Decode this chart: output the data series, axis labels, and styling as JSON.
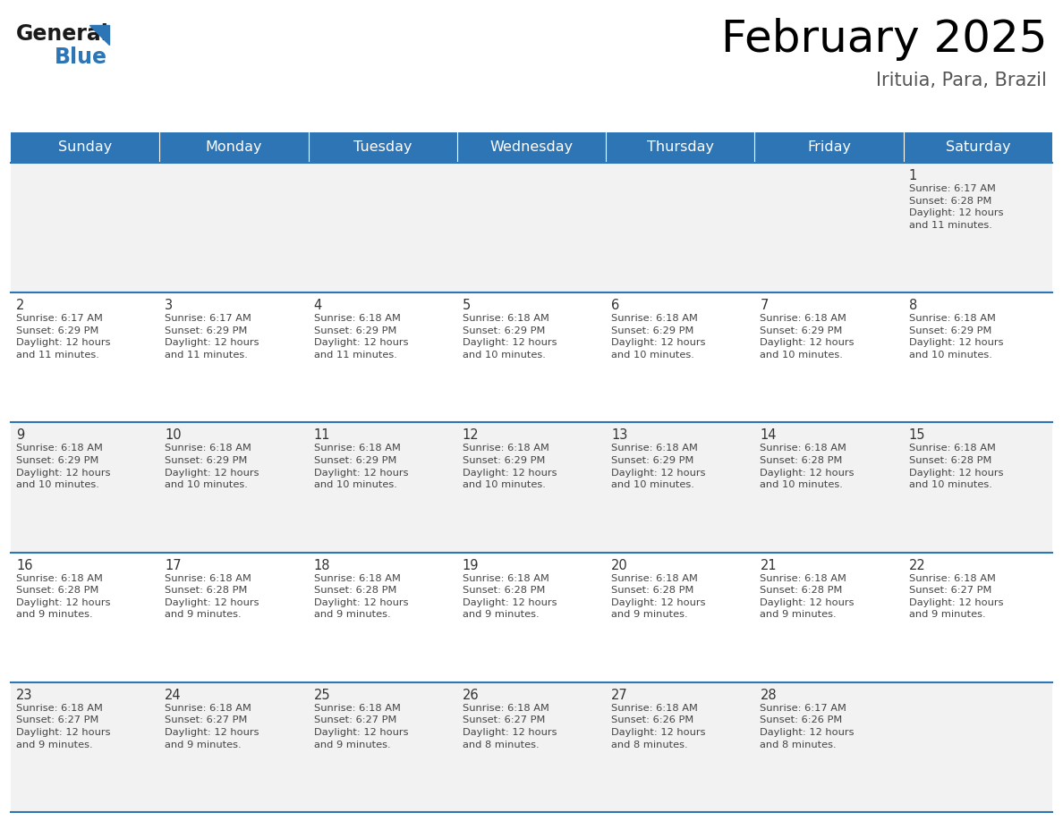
{
  "title": "February 2025",
  "subtitle": "Irituia, Para, Brazil",
  "header_bg": "#2E75B6",
  "header_text_color": "#FFFFFF",
  "cell_bg_odd": "#F2F2F2",
  "cell_bg_even": "#FFFFFF",
  "border_color": "#2E75B6",
  "day_headers": [
    "Sunday",
    "Monday",
    "Tuesday",
    "Wednesday",
    "Thursday",
    "Friday",
    "Saturday"
  ],
  "text_color": "#444444",
  "day_num_color": "#333333",
  "logo_general_color": "#1A1A1A",
  "logo_blue_color": "#2E75B6",
  "calendar": [
    [
      {
        "day": "",
        "info": ""
      },
      {
        "day": "",
        "info": ""
      },
      {
        "day": "",
        "info": ""
      },
      {
        "day": "",
        "info": ""
      },
      {
        "day": "",
        "info": ""
      },
      {
        "day": "",
        "info": ""
      },
      {
        "day": "1",
        "info": "Sunrise: 6:17 AM\nSunset: 6:28 PM\nDaylight: 12 hours\nand 11 minutes."
      }
    ],
    [
      {
        "day": "2",
        "info": "Sunrise: 6:17 AM\nSunset: 6:29 PM\nDaylight: 12 hours\nand 11 minutes."
      },
      {
        "day": "3",
        "info": "Sunrise: 6:17 AM\nSunset: 6:29 PM\nDaylight: 12 hours\nand 11 minutes."
      },
      {
        "day": "4",
        "info": "Sunrise: 6:18 AM\nSunset: 6:29 PM\nDaylight: 12 hours\nand 11 minutes."
      },
      {
        "day": "5",
        "info": "Sunrise: 6:18 AM\nSunset: 6:29 PM\nDaylight: 12 hours\nand 10 minutes."
      },
      {
        "day": "6",
        "info": "Sunrise: 6:18 AM\nSunset: 6:29 PM\nDaylight: 12 hours\nand 10 minutes."
      },
      {
        "day": "7",
        "info": "Sunrise: 6:18 AM\nSunset: 6:29 PM\nDaylight: 12 hours\nand 10 minutes."
      },
      {
        "day": "8",
        "info": "Sunrise: 6:18 AM\nSunset: 6:29 PM\nDaylight: 12 hours\nand 10 minutes."
      }
    ],
    [
      {
        "day": "9",
        "info": "Sunrise: 6:18 AM\nSunset: 6:29 PM\nDaylight: 12 hours\nand 10 minutes."
      },
      {
        "day": "10",
        "info": "Sunrise: 6:18 AM\nSunset: 6:29 PM\nDaylight: 12 hours\nand 10 minutes."
      },
      {
        "day": "11",
        "info": "Sunrise: 6:18 AM\nSunset: 6:29 PM\nDaylight: 12 hours\nand 10 minutes."
      },
      {
        "day": "12",
        "info": "Sunrise: 6:18 AM\nSunset: 6:29 PM\nDaylight: 12 hours\nand 10 minutes."
      },
      {
        "day": "13",
        "info": "Sunrise: 6:18 AM\nSunset: 6:29 PM\nDaylight: 12 hours\nand 10 minutes."
      },
      {
        "day": "14",
        "info": "Sunrise: 6:18 AM\nSunset: 6:28 PM\nDaylight: 12 hours\nand 10 minutes."
      },
      {
        "day": "15",
        "info": "Sunrise: 6:18 AM\nSunset: 6:28 PM\nDaylight: 12 hours\nand 10 minutes."
      }
    ],
    [
      {
        "day": "16",
        "info": "Sunrise: 6:18 AM\nSunset: 6:28 PM\nDaylight: 12 hours\nand 9 minutes."
      },
      {
        "day": "17",
        "info": "Sunrise: 6:18 AM\nSunset: 6:28 PM\nDaylight: 12 hours\nand 9 minutes."
      },
      {
        "day": "18",
        "info": "Sunrise: 6:18 AM\nSunset: 6:28 PM\nDaylight: 12 hours\nand 9 minutes."
      },
      {
        "day": "19",
        "info": "Sunrise: 6:18 AM\nSunset: 6:28 PM\nDaylight: 12 hours\nand 9 minutes."
      },
      {
        "day": "20",
        "info": "Sunrise: 6:18 AM\nSunset: 6:28 PM\nDaylight: 12 hours\nand 9 minutes."
      },
      {
        "day": "21",
        "info": "Sunrise: 6:18 AM\nSunset: 6:28 PM\nDaylight: 12 hours\nand 9 minutes."
      },
      {
        "day": "22",
        "info": "Sunrise: 6:18 AM\nSunset: 6:27 PM\nDaylight: 12 hours\nand 9 minutes."
      }
    ],
    [
      {
        "day": "23",
        "info": "Sunrise: 6:18 AM\nSunset: 6:27 PM\nDaylight: 12 hours\nand 9 minutes."
      },
      {
        "day": "24",
        "info": "Sunrise: 6:18 AM\nSunset: 6:27 PM\nDaylight: 12 hours\nand 9 minutes."
      },
      {
        "day": "25",
        "info": "Sunrise: 6:18 AM\nSunset: 6:27 PM\nDaylight: 12 hours\nand 9 minutes."
      },
      {
        "day": "26",
        "info": "Sunrise: 6:18 AM\nSunset: 6:27 PM\nDaylight: 12 hours\nand 8 minutes."
      },
      {
        "day": "27",
        "info": "Sunrise: 6:18 AM\nSunset: 6:26 PM\nDaylight: 12 hours\nand 8 minutes."
      },
      {
        "day": "28",
        "info": "Sunrise: 6:17 AM\nSunset: 6:26 PM\nDaylight: 12 hours\nand 8 minutes."
      },
      {
        "day": "",
        "info": ""
      }
    ]
  ]
}
